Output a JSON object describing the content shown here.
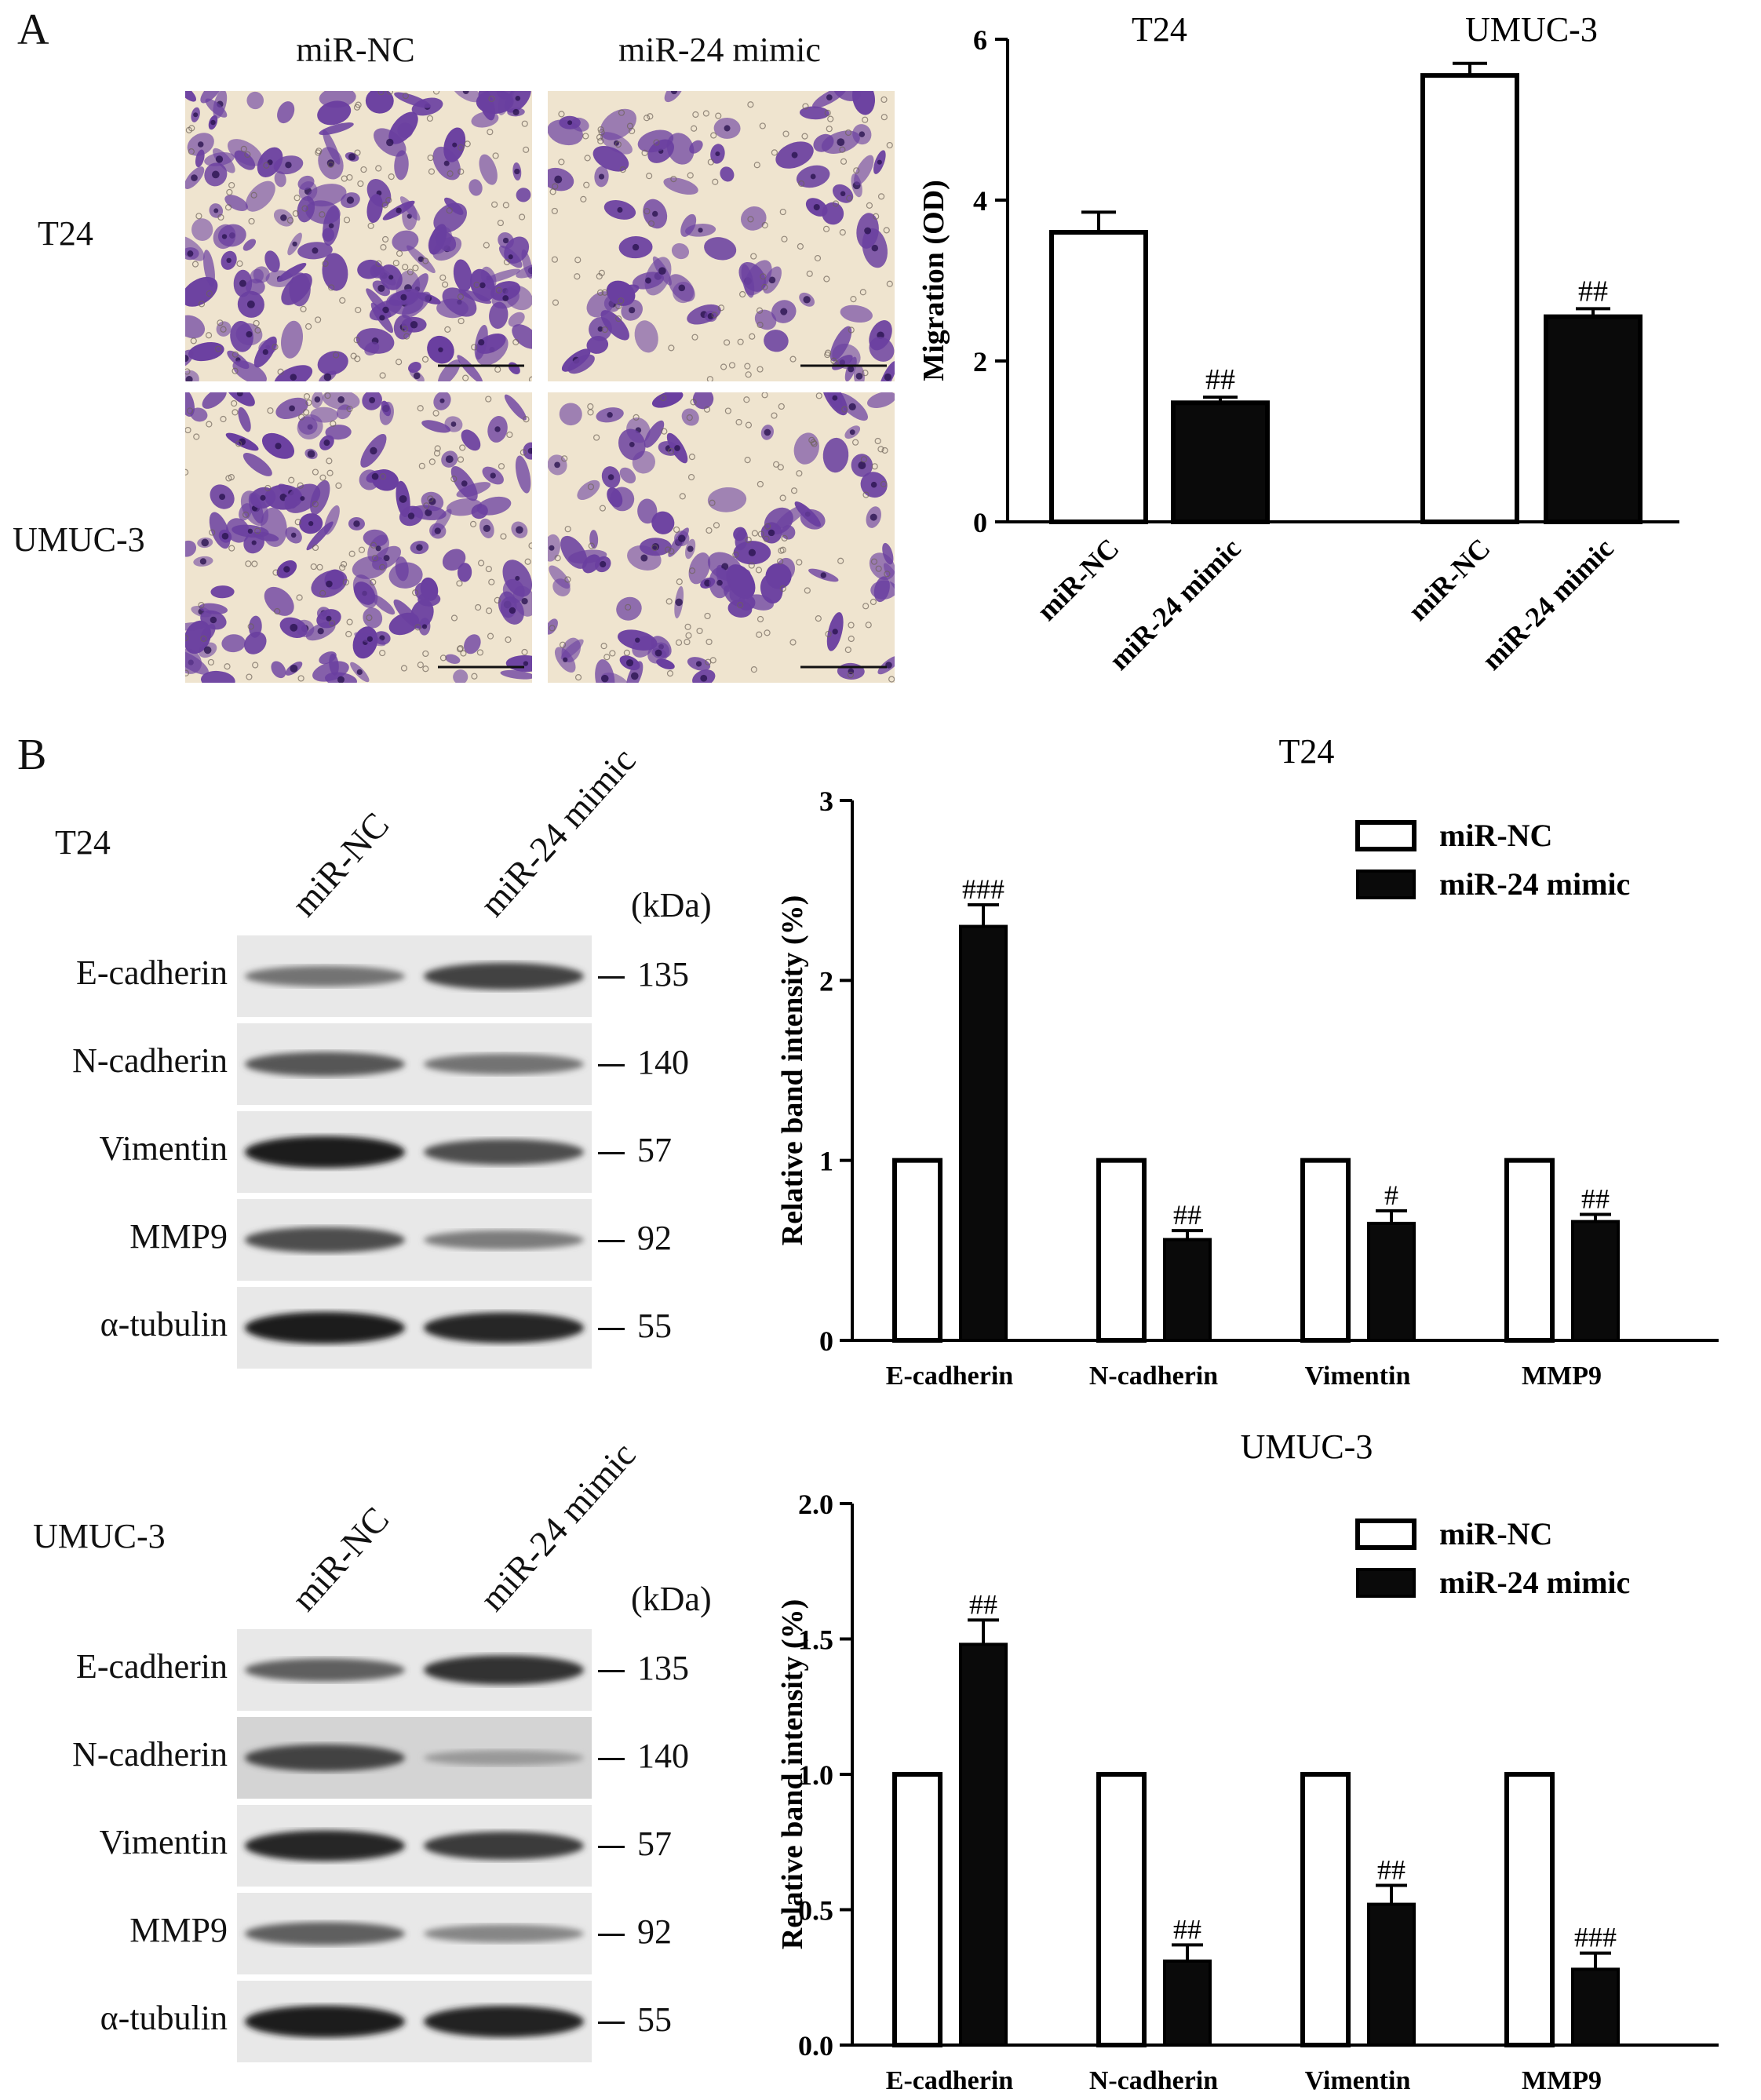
{
  "panelA": {
    "letter": "A",
    "columns": [
      "miR-NC",
      "miR-24 mimic"
    ],
    "rows": [
      "T24",
      "UMUC-3"
    ],
    "micrographs": [
      {
        "row": "T24",
        "condition": "miR-NC",
        "density": 0.9
      },
      {
        "row": "T24",
        "condition": "miR-24 mimic",
        "density": 0.45
      },
      {
        "row": "UMUC-3",
        "condition": "miR-NC",
        "density": 0.8
      },
      {
        "row": "UMUC-3",
        "condition": "miR-24 mimic",
        "density": 0.55
      }
    ]
  },
  "panelB": {
    "letter": "B",
    "blots": [
      {
        "cell_line": "T24",
        "lanes": [
          "miR-NC",
          "miR-24 mimic"
        ],
        "kda_header": "(kDa)",
        "proteins": [
          {
            "name": "E-cadherin",
            "kda": "135",
            "band_intensity": [
              0.45,
              0.7
            ]
          },
          {
            "name": "N-cadherin",
            "kda": "140",
            "band_intensity": [
              0.6,
              0.45
            ]
          },
          {
            "name": "Vimentin",
            "kda": "57",
            "band_intensity": [
              0.9,
              0.65
            ]
          },
          {
            "name": "MMP9",
            "kda": "92",
            "band_intensity": [
              0.65,
              0.4
            ]
          },
          {
            "name": "α-tubulin",
            "kda": "55",
            "band_intensity": [
              0.9,
              0.85
            ]
          }
        ]
      },
      {
        "cell_line": "UMUC-3",
        "lanes": [
          "miR-NC",
          "miR-24 mimic"
        ],
        "kda_header": "(kDa)",
        "proteins": [
          {
            "name": "E-cadherin",
            "kda": "135",
            "band_intensity": [
              0.55,
              0.8
            ]
          },
          {
            "name": "N-cadherin",
            "kda": "140",
            "band_intensity": [
              0.7,
              0.25
            ]
          },
          {
            "name": "Vimentin",
            "kda": "57",
            "band_intensity": [
              0.85,
              0.75
            ]
          },
          {
            "name": "MMP9",
            "kda": "92",
            "band_intensity": [
              0.55,
              0.35
            ]
          },
          {
            "name": "α-tubulin",
            "kda": "55",
            "band_intensity": [
              0.9,
              0.88
            ]
          }
        ]
      }
    ]
  },
  "colors": {
    "open_bar": "#ffffff",
    "filled_bar": "#0a0a0a",
    "stroke": "#000000",
    "stain": "#6a3fa0",
    "background_field": "#efe4cf"
  },
  "chart_data": [
    {
      "id": "migration",
      "type": "bar",
      "title": "",
      "group_titles": [
        "T24",
        "UMUC-3"
      ],
      "categories": [
        "miR-NC",
        "miR-24 mimic",
        "miR-NC",
        "miR-24 mimic"
      ],
      "values": [
        3.6,
        1.48,
        5.55,
        2.55
      ],
      "errors": [
        0.25,
        0.07,
        0.15,
        0.1
      ],
      "fills": [
        "open",
        "filled",
        "open",
        "filled"
      ],
      "annotations": [
        "",
        "##",
        "",
        "##"
      ],
      "ylabel": "Migration (OD)",
      "xlabel": "",
      "ylim": [
        0,
        6
      ],
      "yticks": [
        0,
        2,
        4,
        6
      ],
      "grid": false
    },
    {
      "id": "t24_band",
      "type": "bar",
      "title": "T24",
      "categories": [
        "E-cadherin",
        "N-cadherin",
        "Vimentin",
        "MMP9"
      ],
      "series": [
        {
          "name": "miR-NC",
          "values": [
            1.0,
            1.0,
            1.0,
            1.0
          ],
          "errors": [
            0,
            0,
            0,
            0
          ]
        },
        {
          "name": "miR-24 mimic",
          "values": [
            2.3,
            0.56,
            0.65,
            0.66
          ],
          "errors": [
            0.12,
            0.05,
            0.07,
            0.04
          ]
        }
      ],
      "annotations": [
        "###",
        "##",
        "#",
        "##"
      ],
      "ylabel": "Relative band intensity (%)",
      "ylim": [
        0,
        3
      ],
      "yticks": [
        "0",
        "1",
        "2",
        "3"
      ],
      "legend": "top-right",
      "grid": false
    },
    {
      "id": "umuc3_band",
      "type": "bar",
      "title": "UMUC-3",
      "categories": [
        "E-cadherin",
        "N-cadherin",
        "Vimentin",
        "MMP9"
      ],
      "series": [
        {
          "name": "miR-NC",
          "values": [
            1.0,
            1.0,
            1.0,
            1.0
          ],
          "errors": [
            0,
            0,
            0,
            0
          ]
        },
        {
          "name": "miR-24 mimic",
          "values": [
            1.48,
            0.31,
            0.52,
            0.28
          ],
          "errors": [
            0.09,
            0.06,
            0.07,
            0.06
          ]
        }
      ],
      "annotations": [
        "##",
        "##",
        "##",
        "###"
      ],
      "ylabel": "Relative band intensity (%)",
      "ylim": [
        0,
        2
      ],
      "yticks": [
        "0.0",
        "0.5",
        "1.0",
        "1.5",
        "2.0"
      ],
      "legend": "top-right",
      "grid": false
    }
  ]
}
